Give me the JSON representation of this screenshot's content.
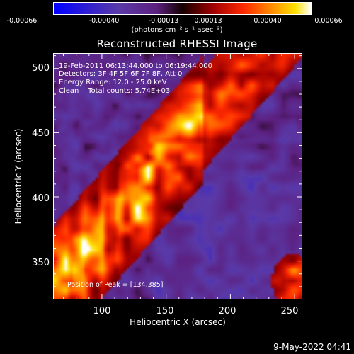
{
  "colorbar": {
    "ticks": [
      "-0.00066",
      "-0.00040",
      "-0.00013",
      "0.00013",
      "0.00040",
      "0.00066"
    ],
    "units": "(photons cm⁻² s⁻¹ asec⁻²)"
  },
  "title": "Reconstructed RHESSI Image",
  "info_lines": [
    "19-Feb-2011 06:13:44.000 to 06:19:44.000",
    "Detectors: 3F 4F 5F 6F 7F 8F, Att 0",
    "Energy Range: 12.0 - 25.0 keV",
    "Clean    Total counts: 5.74E+03"
  ],
  "peak_text": "Position of Peak = [134,385]",
  "timestamp": "9-May-2022 04:41",
  "chart_data": {
    "type": "heatmap",
    "title": "Reconstructed RHESSI Image",
    "xlabel": "Heliocentric X (arcsec)",
    "ylabel": "Heliocentric Y (arcsec)",
    "xlim": [
      62,
      256
    ],
    "ylim": [
      320,
      512
    ],
    "xticks": [
      "100",
      "150",
      "200",
      "250"
    ],
    "yticks": [
      "500",
      "450",
      "400",
      "350"
    ],
    "colorbar_range": [
      -0.00066,
      0.00066
    ],
    "peak_position": [
      134,
      385
    ]
  }
}
